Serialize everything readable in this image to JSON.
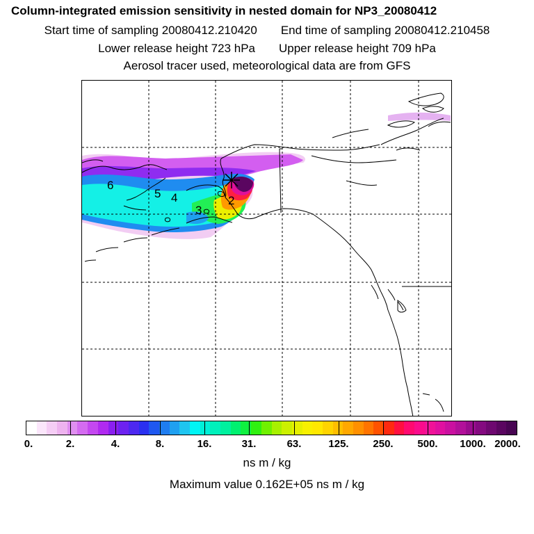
{
  "header": {
    "title": "Column-integrated emission sensitivity in nested domain for NP3_20080412",
    "start_label": "Start time of sampling 20080412.210420",
    "end_label": "End time of sampling 20080412.210458",
    "lower_label": "Lower release height  723 hPa",
    "upper_label": "Upper release height  709 hPa",
    "tracer_note": "Aerosol tracer used, meteorological data are from GFS"
  },
  "map": {
    "markers": [
      {
        "label": "6"
      },
      {
        "label": "5"
      },
      {
        "label": "4"
      },
      {
        "label": "3"
      },
      {
        "label": "2"
      }
    ],
    "release_point_icon": "asterisk-icon",
    "land_color": "#ffffff",
    "coast_color": "#000000",
    "grid_style": "dashed"
  },
  "colorbar": {
    "tick_labels": [
      "0.",
      "2.",
      "4.",
      "8.",
      "16.",
      "31.",
      "63.",
      "125.",
      "250.",
      "500.",
      "1000.",
      "2000."
    ],
    "colors": [
      "#ffffff",
      "#fbe6fb",
      "#f5cdf5",
      "#eeb3ef",
      "#e08ff0",
      "#d46bf0",
      "#c448f0",
      "#b02af0",
      "#8a1ff0",
      "#6d22f0",
      "#4d28f0",
      "#2a30f0",
      "#1f58f0",
      "#1f7df0",
      "#1fa0f0",
      "#1fc5f0",
      "#00f5f5",
      "#00f0d8",
      "#00f0bb",
      "#00f09e",
      "#00f070",
      "#10f040",
      "#30f010",
      "#70f000",
      "#a8f000",
      "#ccf000",
      "#e6f000",
      "#f8f000",
      "#ffe800",
      "#ffd400",
      "#ffbe00",
      "#ffa800",
      "#ff9000",
      "#ff7400",
      "#ff5200",
      "#ff2a10",
      "#ff1040",
      "#ff0a70",
      "#fa0c8c",
      "#f01298",
      "#e010a0",
      "#ca10a0",
      "#b2109a",
      "#9a0c8e",
      "#840a80",
      "#6e0870",
      "#5a0660",
      "#480552"
    ]
  },
  "unit_label": "ns m / kg",
  "max_value_label": "Maximum value  0.162E+05 ns m / kg"
}
